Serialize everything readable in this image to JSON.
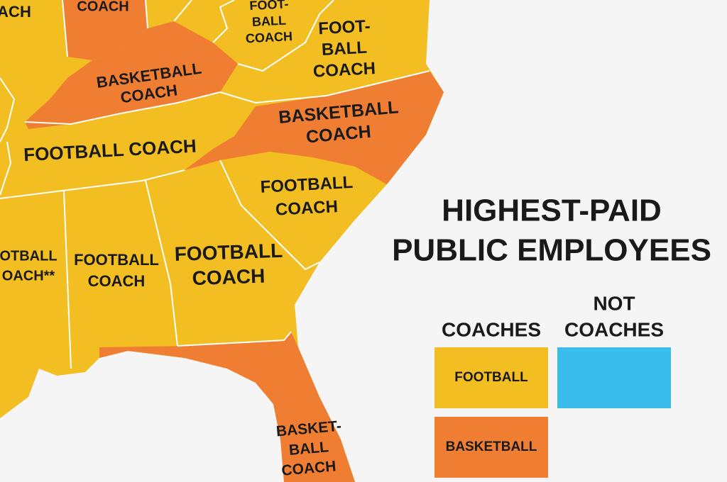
{
  "map": {
    "states": [
      {
        "lines": [
          "ACH"
        ]
      },
      {
        "lines": [
          "COACH"
        ]
      },
      {
        "lines": [
          "FOOT-",
          "BALL",
          "COACH"
        ]
      },
      {
        "lines": [
          "FOOT-",
          "BALL",
          "COACH"
        ]
      },
      {
        "lines": [
          "BASKETBALL",
          "COACH"
        ]
      },
      {
        "lines": [
          "FOOTBALL COACH"
        ]
      },
      {
        "lines": [
          "BASKETBALL",
          "COACH"
        ]
      },
      {
        "lines": [
          "FOOTBALL",
          "COACH"
        ]
      },
      {
        "lines": [
          "OTBALL",
          "OACH**"
        ]
      },
      {
        "lines": [
          "FOOTBALL",
          "COACH"
        ]
      },
      {
        "lines": [
          "FOOTBALL",
          "COACH"
        ]
      },
      {
        "lines": [
          "BASKET-",
          "BALL",
          "COACH"
        ]
      }
    ]
  },
  "legend": {
    "title": [
      "HIGHEST-PAID",
      "PUBLIC EMPLOYEES"
    ],
    "coaches": {
      "heading": "COACHES",
      "items": [
        "FOOTBALL",
        "BASKETBALL"
      ]
    },
    "not_coaches": {
      "heading": [
        "NOT",
        "COACHES"
      ]
    }
  }
}
